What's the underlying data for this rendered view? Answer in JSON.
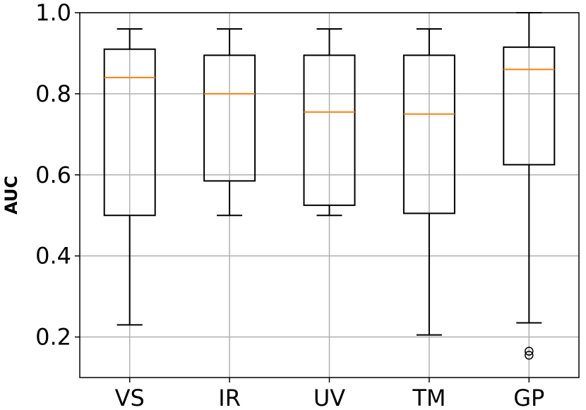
{
  "chart_data": {
    "type": "boxplot",
    "title": "",
    "xlabel": "",
    "ylabel": "AUC",
    "ylim": [
      0.1,
      1.0
    ],
    "yticks": [
      0.2,
      0.4,
      0.6,
      0.8,
      1.0
    ],
    "ytick_labels": [
      "0.2",
      "0.4",
      "0.6",
      "0.8",
      "1.0"
    ],
    "grid": true,
    "categories": [
      "VS",
      "IR",
      "UV",
      "TM",
      "GP"
    ],
    "boxes": [
      {
        "name": "VS",
        "whisker_low": 0.23,
        "q1": 0.5,
        "median": 0.84,
        "q3": 0.91,
        "whisker_high": 0.96,
        "outliers": []
      },
      {
        "name": "IR",
        "whisker_low": 0.5,
        "q1": 0.585,
        "median": 0.8,
        "q3": 0.895,
        "whisker_high": 0.96,
        "outliers": []
      },
      {
        "name": "UV",
        "whisker_low": 0.5,
        "q1": 0.525,
        "median": 0.755,
        "q3": 0.895,
        "whisker_high": 0.96,
        "outliers": []
      },
      {
        "name": "TM",
        "whisker_low": 0.205,
        "q1": 0.505,
        "median": 0.75,
        "q3": 0.895,
        "whisker_high": 0.96,
        "outliers": []
      },
      {
        "name": "GP",
        "whisker_low": 0.235,
        "q1": 0.625,
        "median": 0.86,
        "q3": 0.915,
        "whisker_high": 1.0,
        "outliers": [
          0.165,
          0.155
        ]
      }
    ],
    "colors": {
      "box": "#000000",
      "median": "#ff7f0e",
      "grid": "#b0b0b0",
      "outlier": "#000000"
    }
  }
}
